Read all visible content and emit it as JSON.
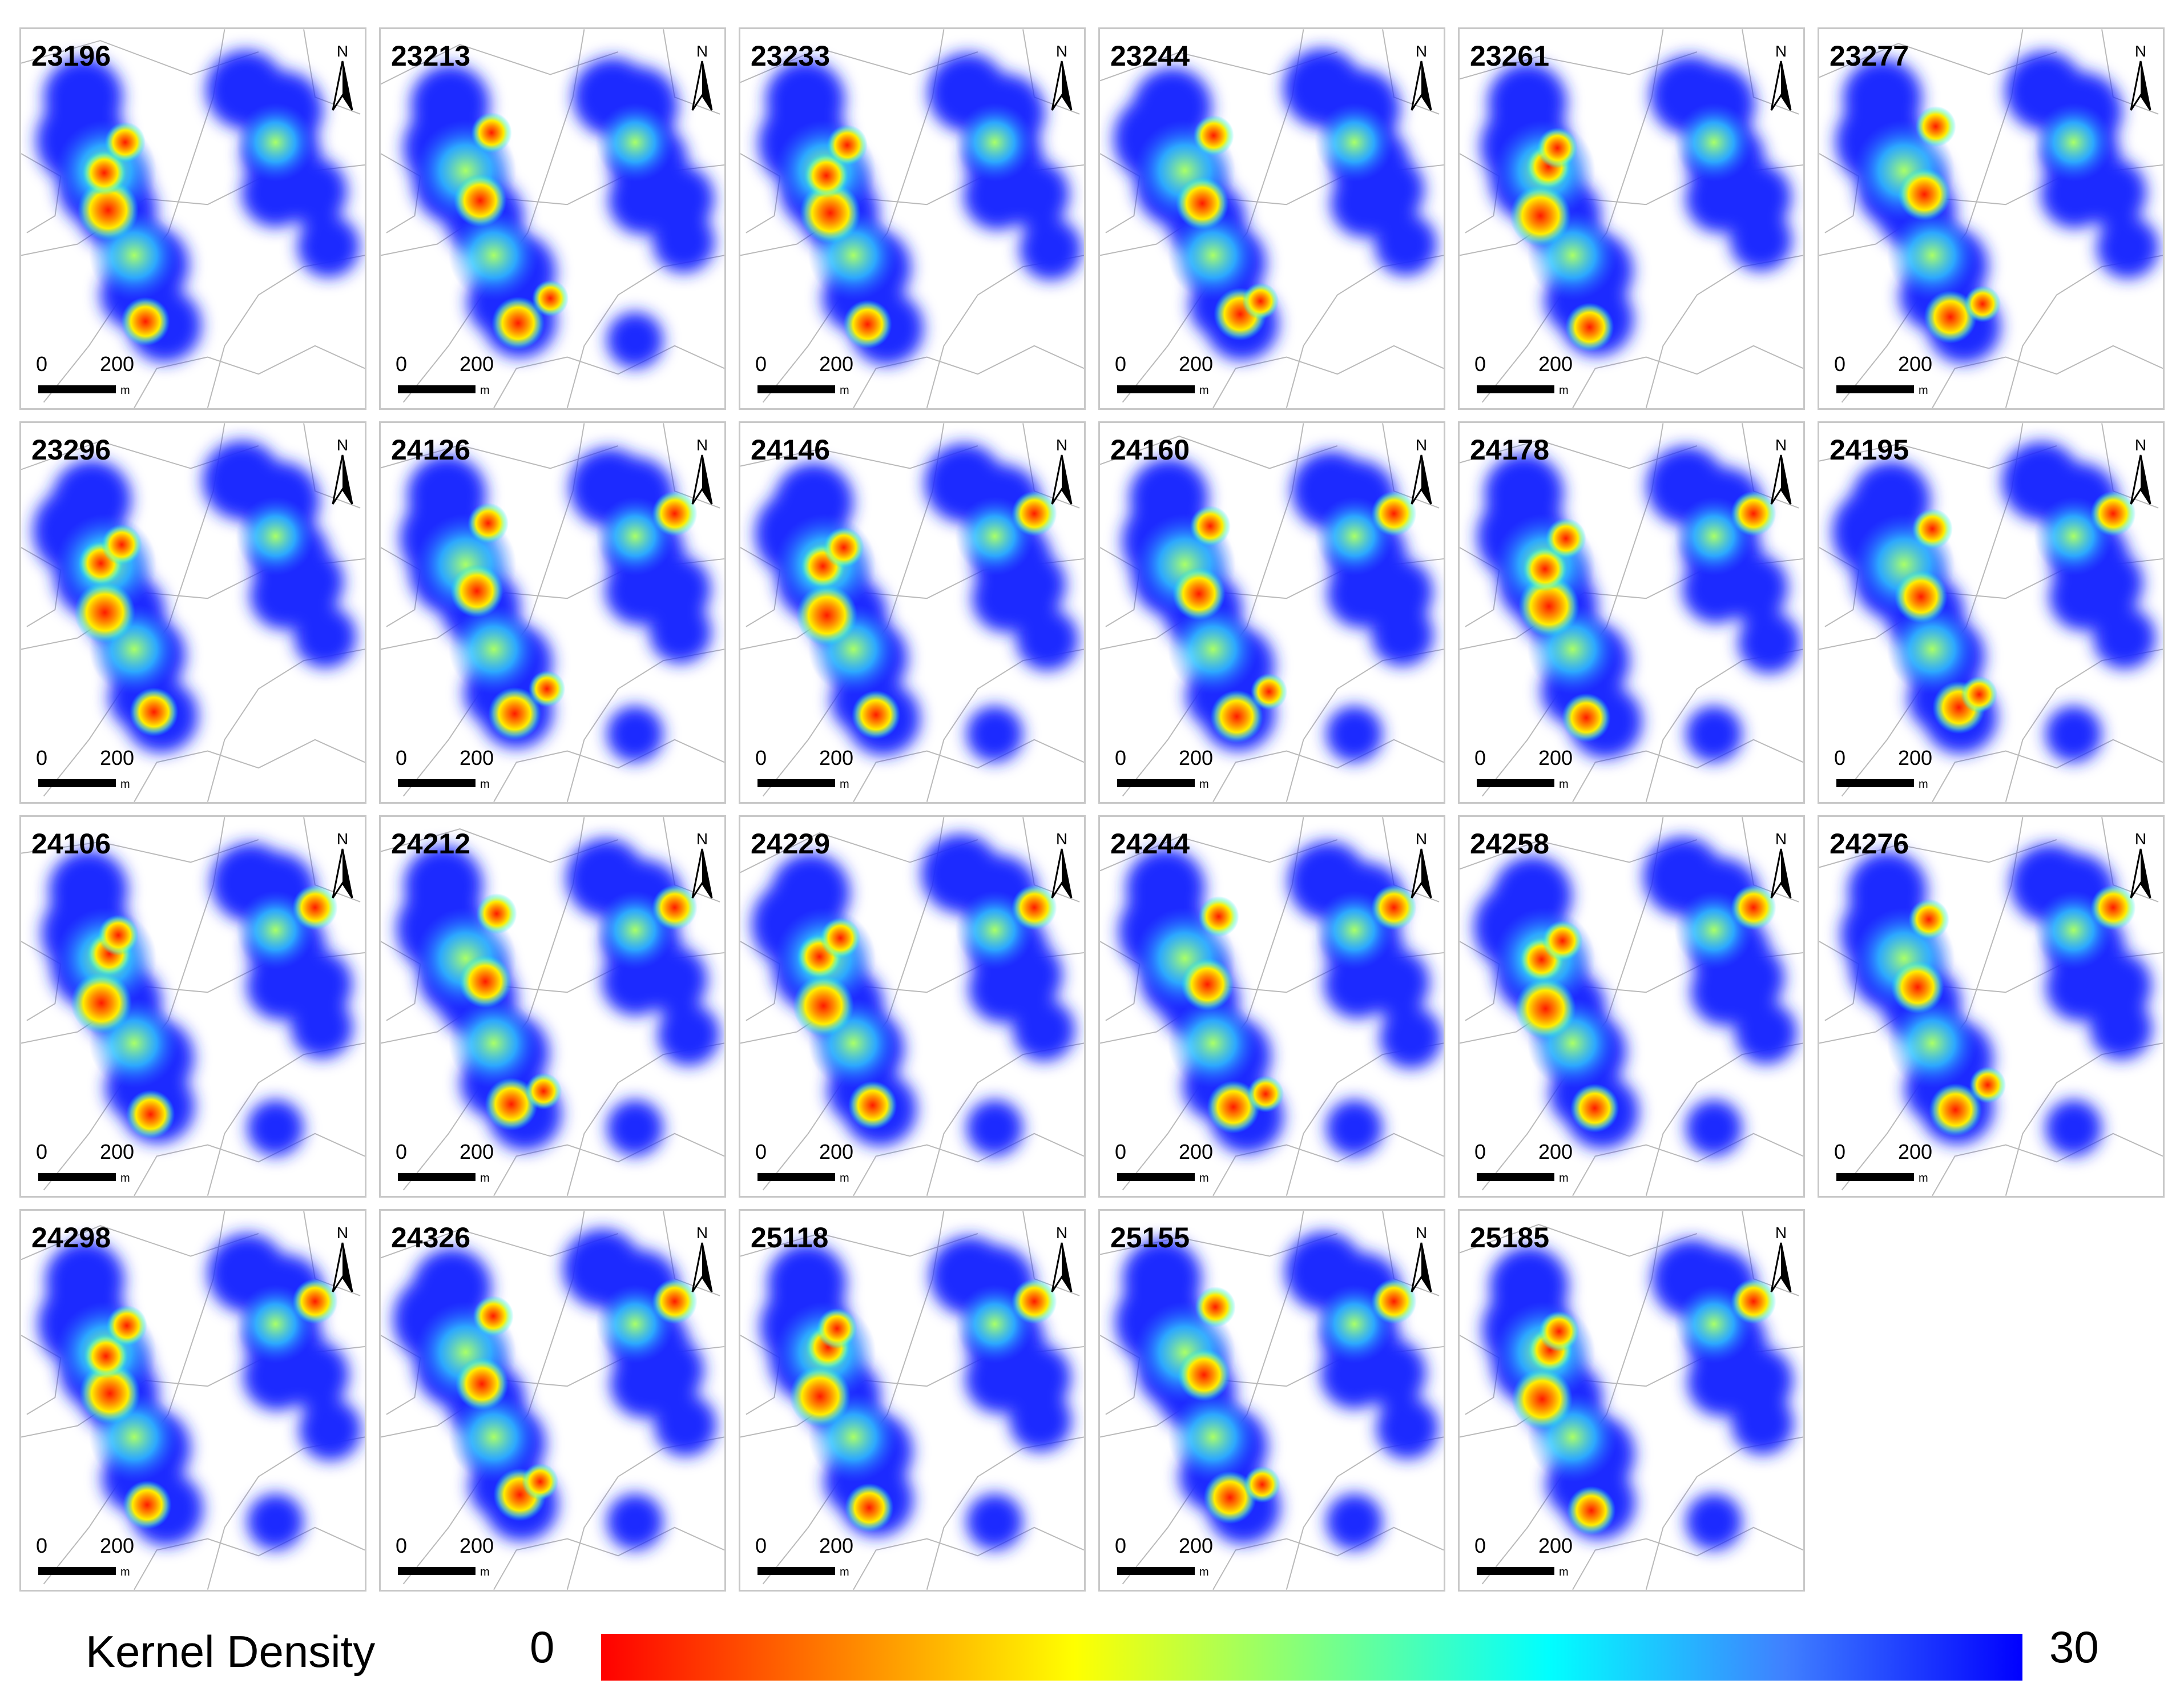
{
  "panels": [
    {
      "id": "23196"
    },
    {
      "id": "23213"
    },
    {
      "id": "23233"
    },
    {
      "id": "23244"
    },
    {
      "id": "23261"
    },
    {
      "id": "23277"
    },
    {
      "id": "23296"
    },
    {
      "id": "24126"
    },
    {
      "id": "24146"
    },
    {
      "id": "24160"
    },
    {
      "id": "24178"
    },
    {
      "id": "24195"
    },
    {
      "id": "24106"
    },
    {
      "id": "24212"
    },
    {
      "id": "24229"
    },
    {
      "id": "24244"
    },
    {
      "id": "24258"
    },
    {
      "id": "24276"
    },
    {
      "id": "24298"
    },
    {
      "id": "24326"
    },
    {
      "id": "25118"
    },
    {
      "id": "25155"
    },
    {
      "id": "25185"
    }
  ],
  "north_label": "N",
  "scale": {
    "zero": "0",
    "distance": "200",
    "unit": "m"
  },
  "legend": {
    "label": "Kernel Density",
    "min": "0",
    "max": "30",
    "colors": [
      "#ff0000",
      "#ff8000",
      "#ffff00",
      "#80ff80",
      "#00ffff",
      "#4080ff",
      "#0000ff"
    ]
  }
}
